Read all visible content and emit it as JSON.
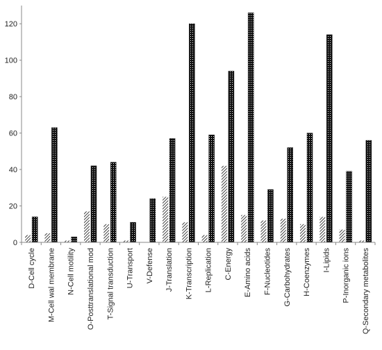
{
  "chart_data": {
    "type": "bar",
    "title": "",
    "xlabel": "",
    "ylabel": "",
    "ylim": [
      0,
      130
    ],
    "yticks": [
      0,
      20,
      40,
      60,
      80,
      100,
      120
    ],
    "grid": false,
    "legend": "none",
    "categories": [
      "D-Cell cycle",
      "M-Cell wal membrane",
      "N-Cell motility",
      "O-Posttranslational mod",
      "T-Signal transduction",
      "U-Transport",
      "V-Defense",
      "J-Translation",
      "K-Transcription",
      "L-Replication",
      "C-Energy",
      "E-Amino acids",
      "F-Nucleotides",
      "G-Carbohydrates",
      "H-Coenzymes",
      "I-Lipids",
      "P-Inorganic ions",
      "Q-Secondary metabolites"
    ],
    "series": [
      {
        "pattern": "hatched",
        "values": [
          4,
          5,
          1,
          17,
          10,
          1,
          0,
          25,
          11,
          4,
          42,
          15,
          12,
          13,
          10,
          14,
          7,
          1
        ]
      },
      {
        "pattern": "dotted",
        "values": [
          14,
          63,
          3,
          42,
          44,
          11,
          24,
          57,
          120,
          59,
          94,
          126,
          29,
          52,
          60,
          114,
          39,
          56
        ]
      }
    ]
  }
}
